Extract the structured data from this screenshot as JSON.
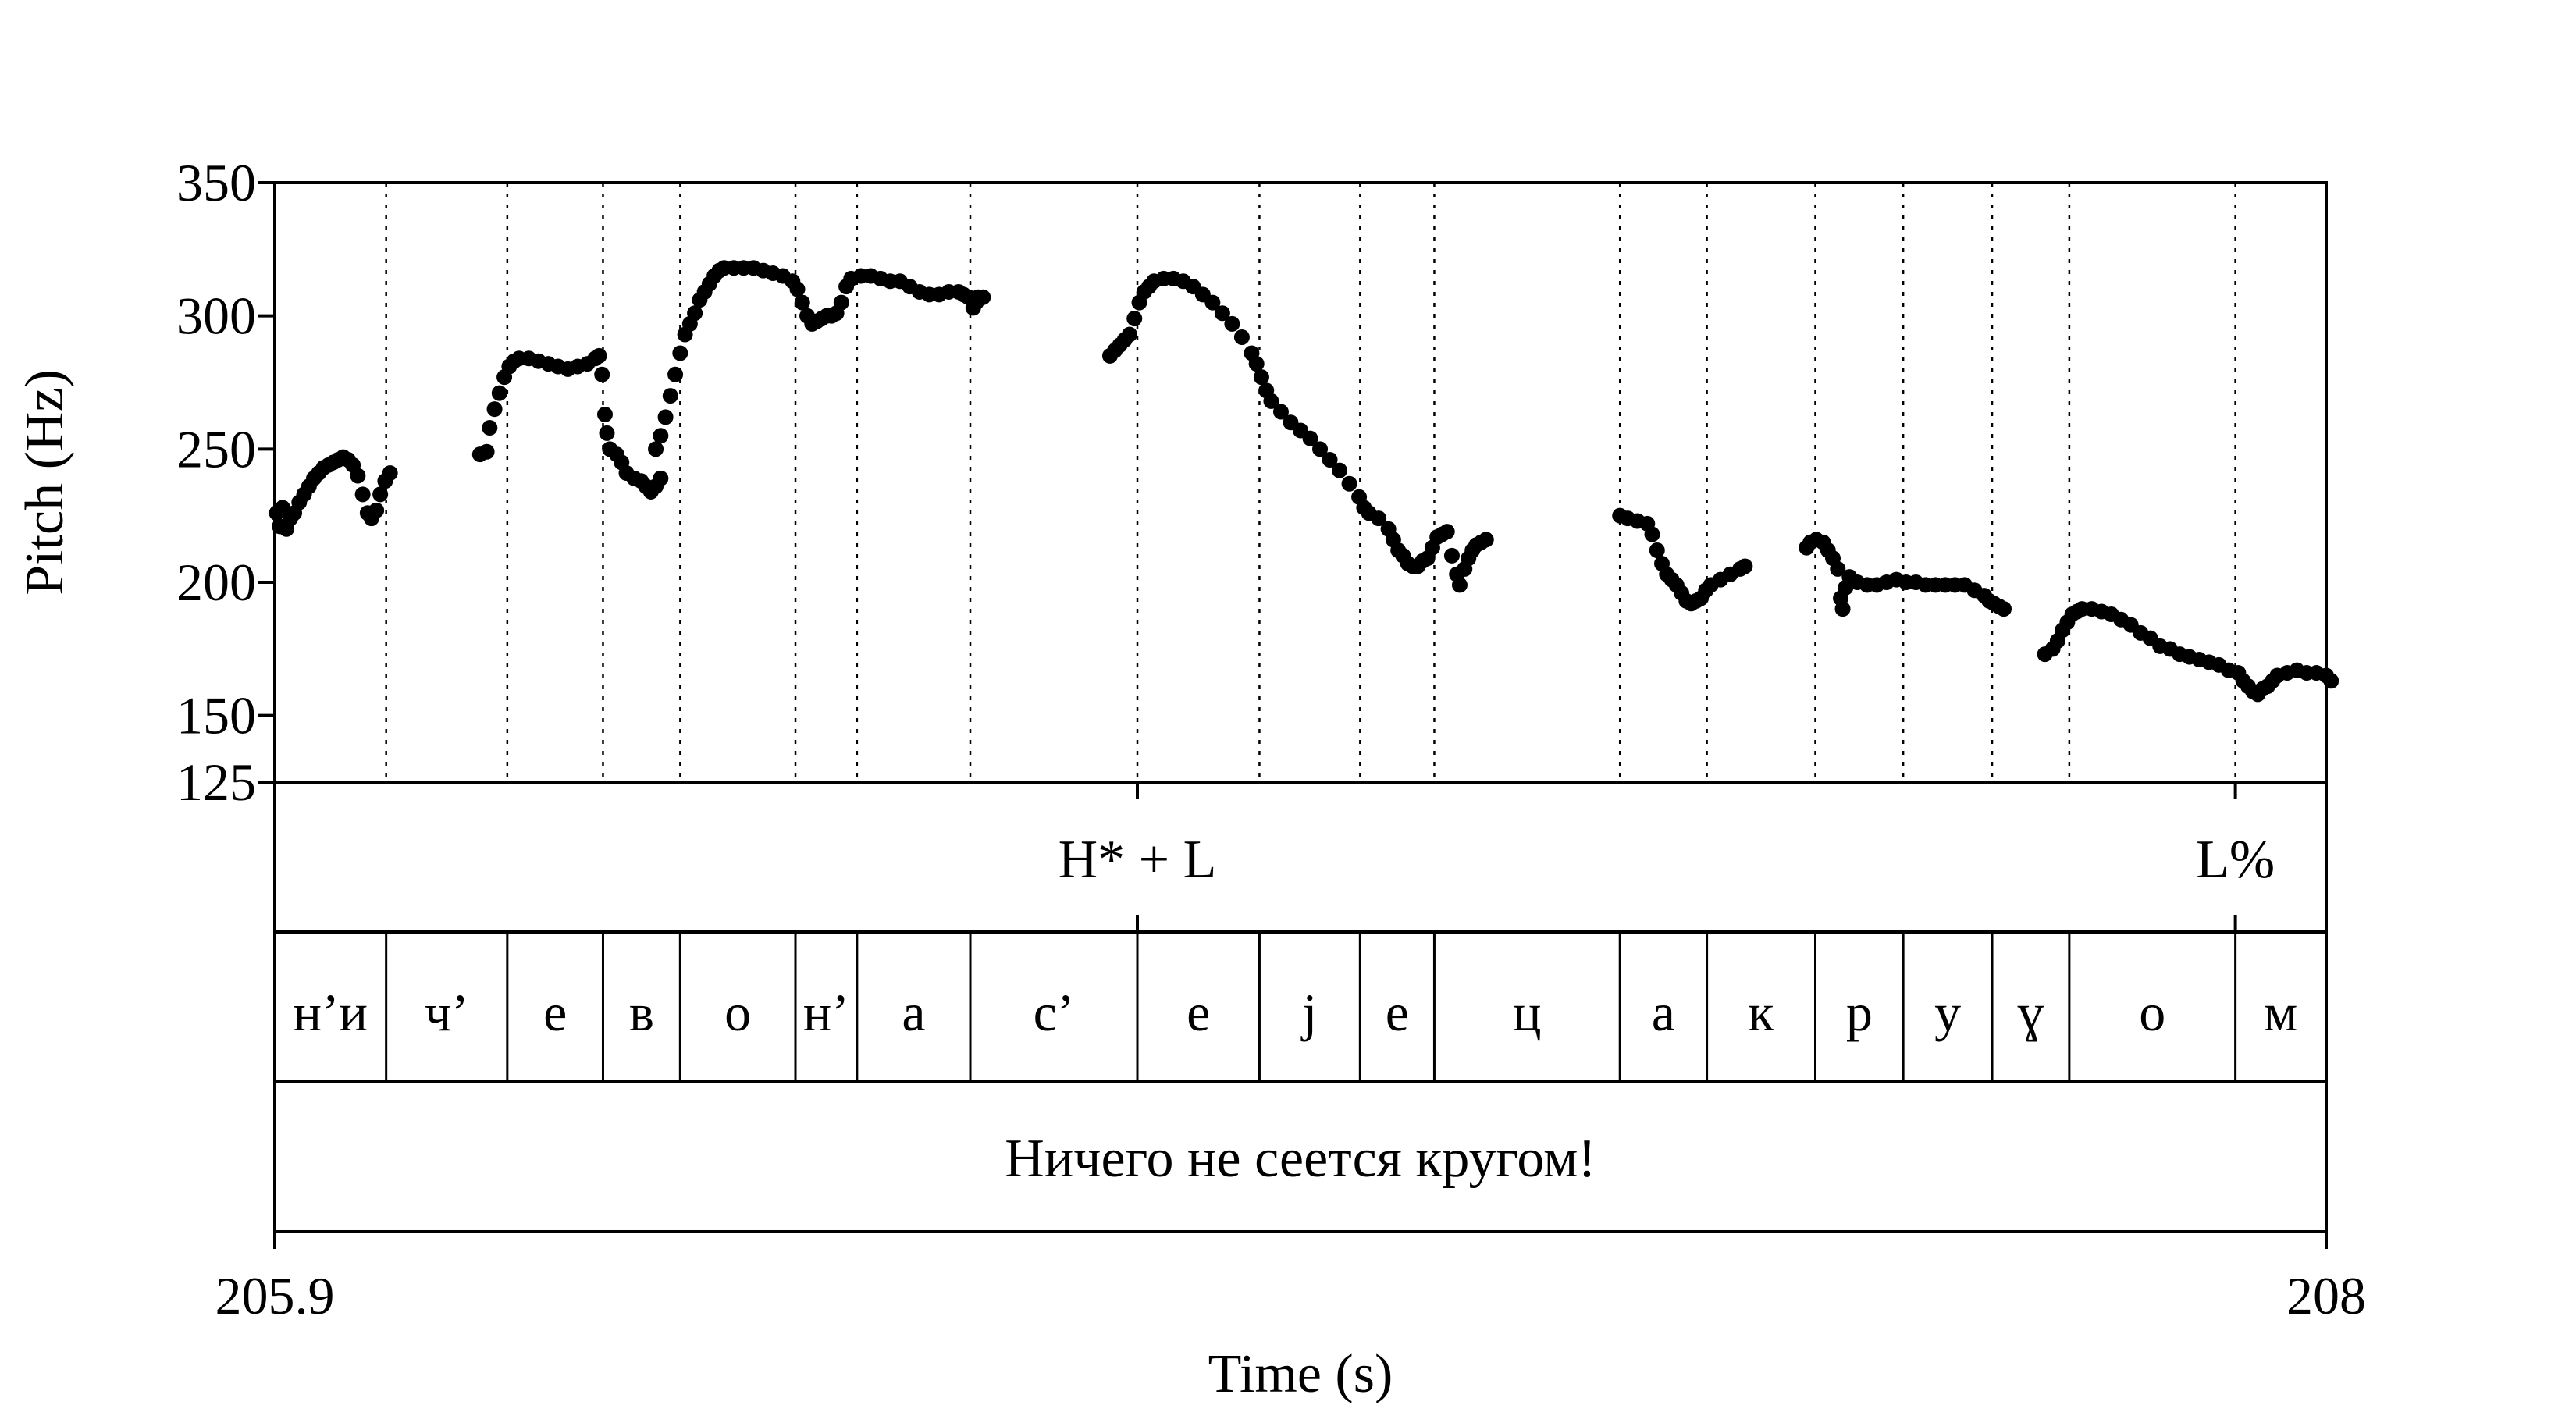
{
  "chart_data": {
    "type": "scatter",
    "xlabel": "Time (s)",
    "ylabel": "Pitch (Hz)",
    "xlim": [
      205.9,
      208
    ],
    "ylim": [
      125,
      350
    ],
    "x_tick_labels": [
      "205.9",
      "208"
    ],
    "y_ticks": [
      125,
      150,
      200,
      250,
      300,
      350
    ],
    "y_tick_labels": [
      "125",
      "150",
      "200",
      "250",
      "300",
      "350"
    ],
    "grid": "vertical dotted lines at segment boundaries",
    "segment_boundaries": [
      206.014,
      206.138,
      206.236,
      206.315,
      206.433,
      206.496,
      206.612,
      206.783,
      206.908,
      207.011,
      207.087,
      207.277,
      207.366,
      207.477,
      207.567,
      207.658,
      207.737,
      207.907
    ],
    "tones": [
      {
        "label": "H* + L",
        "time": 206.783
      },
      {
        "label": "L%",
        "time": 207.907
      }
    ],
    "segments": [
      "н’и",
      "ч’",
      "е",
      "в",
      "о",
      "н’",
      "а",
      "с’",
      "е",
      "ј",
      "е",
      "ц",
      "а",
      "к",
      "р",
      "у",
      "ɣ",
      "о",
      "м"
    ],
    "sentence": "Ничего не сеется кругом!",
    "series": [
      {
        "points": [
          [
            205.902,
            226
          ],
          [
            205.905,
            221
          ],
          [
            205.908,
            228
          ],
          [
            205.912,
            220
          ],
          [
            205.916,
            224
          ],
          [
            205.92,
            226
          ],
          [
            205.925,
            230
          ],
          [
            205.93,
            233
          ],
          [
            205.935,
            236
          ],
          [
            205.94,
            239
          ],
          [
            205.945,
            241
          ],
          [
            205.95,
            243
          ],
          [
            205.955,
            244
          ],
          [
            205.96,
            245
          ],
          [
            205.965,
            246
          ],
          [
            205.97,
            247
          ],
          [
            205.975,
            246
          ],
          [
            205.98,
            244
          ],
          [
            205.985,
            240
          ],
          [
            205.99,
            233
          ],
          [
            205.995,
            226
          ],
          [
            205.999,
            224
          ],
          [
            206.004,
            227
          ],
          [
            206.008,
            233
          ],
          [
            206.013,
            238
          ],
          [
            206.018,
            241
          ],
          [
            206.11,
            248
          ],
          [
            206.117,
            249
          ],
          [
            206.12,
            258
          ],
          [
            206.125,
            265
          ],
          [
            206.13,
            271
          ],
          [
            206.135,
            277
          ],
          [
            206.14,
            281
          ],
          [
            206.145,
            283
          ],
          [
            206.15,
            284
          ],
          [
            206.16,
            284
          ],
          [
            206.17,
            283
          ],
          [
            206.18,
            282
          ],
          [
            206.19,
            281
          ],
          [
            206.2,
            280
          ],
          [
            206.21,
            281
          ],
          [
            206.22,
            282
          ],
          [
            206.228,
            284
          ],
          [
            206.232,
            285
          ],
          [
            206.235,
            278
          ],
          [
            206.238,
            263
          ],
          [
            206.24,
            256
          ],
          [
            206.243,
            250
          ],
          [
            206.25,
            248
          ],
          [
            206.255,
            245
          ],
          [
            206.26,
            241
          ],
          [
            206.268,
            239
          ],
          [
            206.275,
            238
          ],
          [
            206.28,
            236
          ],
          [
            206.285,
            234
          ],
          [
            206.29,
            236
          ],
          [
            206.295,
            239
          ],
          [
            206.29,
            250
          ],
          [
            206.295,
            255
          ],
          [
            206.3,
            262
          ],
          [
            206.305,
            270
          ],
          [
            206.31,
            278
          ],
          [
            206.315,
            286
          ],
          [
            206.32,
            293
          ],
          [
            206.325,
            297
          ],
          [
            206.33,
            301
          ],
          [
            206.335,
            306
          ],
          [
            206.34,
            309
          ],
          [
            206.345,
            312
          ],
          [
            206.35,
            315
          ],
          [
            206.355,
            317
          ],
          [
            206.36,
            318
          ],
          [
            206.37,
            318
          ],
          [
            206.38,
            318
          ],
          [
            206.39,
            318
          ],
          [
            206.4,
            317
          ],
          [
            206.41,
            316
          ],
          [
            206.42,
            315
          ],
          [
            206.43,
            313
          ],
          [
            206.435,
            310
          ],
          [
            206.44,
            305
          ],
          [
            206.445,
            300
          ],
          [
            206.45,
            297
          ],
          [
            206.455,
            298
          ],
          [
            206.46,
            299
          ],
          [
            206.465,
            300
          ],
          [
            206.47,
            300
          ],
          [
            206.475,
            301
          ],
          [
            206.48,
            305
          ],
          [
            206.485,
            311
          ],
          [
            206.49,
            314
          ],
          [
            206.5,
            315
          ],
          [
            206.51,
            315
          ],
          [
            206.52,
            314
          ],
          [
            206.53,
            313
          ],
          [
            206.54,
            313
          ],
          [
            206.55,
            311
          ],
          [
            206.56,
            309
          ],
          [
            206.57,
            308
          ],
          [
            206.58,
            308
          ],
          [
            206.59,
            309
          ],
          [
            206.6,
            309
          ],
          [
            206.605,
            308
          ],
          [
            206.61,
            307
          ],
          [
            206.615,
            303
          ],
          [
            206.618,
            305
          ],
          [
            206.62,
            307
          ],
          [
            206.625,
            307
          ],
          [
            206.755,
            285
          ],
          [
            206.76,
            287
          ],
          [
            206.765,
            289
          ],
          [
            206.77,
            291
          ],
          [
            206.775,
            293
          ],
          [
            206.78,
            299
          ],
          [
            206.785,
            305
          ],
          [
            206.79,
            309
          ],
          [
            206.795,
            311
          ],
          [
            206.8,
            313
          ],
          [
            206.81,
            314
          ],
          [
            206.82,
            314
          ],
          [
            206.83,
            313
          ],
          [
            206.84,
            311
          ],
          [
            206.85,
            308
          ],
          [
            206.86,
            305
          ],
          [
            206.87,
            301
          ],
          [
            206.88,
            297
          ],
          [
            206.89,
            292
          ],
          [
            206.9,
            286
          ],
          [
            206.905,
            282
          ],
          [
            206.91,
            277
          ],
          [
            206.915,
            272
          ],
          [
            206.92,
            268
          ],
          [
            206.93,
            264
          ],
          [
            206.94,
            260
          ],
          [
            206.95,
            257
          ],
          [
            206.96,
            254
          ],
          [
            206.97,
            250
          ],
          [
            206.98,
            246
          ],
          [
            206.99,
            242
          ],
          [
            207.0,
            237
          ],
          [
            207.01,
            232
          ],
          [
            207.015,
            228
          ],
          [
            207.02,
            226
          ],
          [
            207.03,
            224
          ],
          [
            207.04,
            220
          ],
          [
            207.045,
            216
          ],
          [
            207.05,
            212
          ],
          [
            207.055,
            210
          ],
          [
            207.06,
            207
          ],
          [
            207.065,
            206
          ],
          [
            207.07,
            206
          ],
          [
            207.075,
            208
          ],
          [
            207.08,
            209
          ],
          [
            207.085,
            213
          ],
          [
            207.09,
            217
          ],
          [
            207.095,
            218
          ],
          [
            207.1,
            219
          ],
          [
            207.105,
            210
          ],
          [
            207.11,
            203
          ],
          [
            207.113,
            199
          ],
          [
            207.118,
            205
          ],
          [
            207.122,
            209
          ],
          [
            207.126,
            212
          ],
          [
            207.13,
            214
          ],
          [
            207.135,
            215
          ],
          [
            207.14,
            216
          ],
          [
            207.277,
            225
          ],
          [
            207.285,
            224
          ],
          [
            207.295,
            223
          ],
          [
            207.305,
            222
          ],
          [
            207.31,
            218
          ],
          [
            207.315,
            212
          ],
          [
            207.32,
            207
          ],
          [
            207.325,
            203
          ],
          [
            207.33,
            201
          ],
          [
            207.335,
            199
          ],
          [
            207.34,
            196
          ],
          [
            207.345,
            193
          ],
          [
            207.35,
            192
          ],
          [
            207.355,
            193
          ],
          [
            207.36,
            194
          ],
          [
            207.365,
            197
          ],
          [
            207.37,
            199
          ],
          [
            207.38,
            201
          ],
          [
            207.39,
            203
          ],
          [
            207.4,
            205
          ],
          [
            207.405,
            206
          ],
          [
            207.468,
            213
          ],
          [
            207.472,
            215
          ],
          [
            207.478,
            216
          ],
          [
            207.485,
            215
          ],
          [
            207.49,
            212
          ],
          [
            207.495,
            209
          ],
          [
            207.5,
            205
          ],
          [
            207.503,
            194
          ],
          [
            207.505,
            190
          ],
          [
            207.508,
            198
          ],
          [
            207.512,
            202
          ],
          [
            207.52,
            200
          ],
          [
            207.53,
            199
          ],
          [
            207.54,
            199
          ],
          [
            207.55,
            200
          ],
          [
            207.56,
            201
          ],
          [
            207.57,
            200
          ],
          [
            207.58,
            200
          ],
          [
            207.59,
            199
          ],
          [
            207.6,
            199
          ],
          [
            207.61,
            199
          ],
          [
            207.62,
            199
          ],
          [
            207.63,
            199
          ],
          [
            207.64,
            197
          ],
          [
            207.65,
            195
          ],
          [
            207.655,
            193
          ],
          [
            207.66,
            192
          ],
          [
            207.665,
            191
          ],
          [
            207.67,
            190
          ],
          [
            207.712,
            173
          ],
          [
            207.72,
            175
          ],
          [
            207.725,
            178
          ],
          [
            207.73,
            182
          ],
          [
            207.735,
            185
          ],
          [
            207.74,
            188
          ],
          [
            207.745,
            189
          ],
          [
            207.75,
            190
          ],
          [
            207.76,
            190
          ],
          [
            207.77,
            189
          ],
          [
            207.78,
            188
          ],
          [
            207.79,
            186
          ],
          [
            207.8,
            184
          ],
          [
            207.81,
            181
          ],
          [
            207.82,
            179
          ],
          [
            207.83,
            176
          ],
          [
            207.84,
            175
          ],
          [
            207.85,
            173
          ],
          [
            207.86,
            172
          ],
          [
            207.87,
            171
          ],
          [
            207.88,
            170
          ],
          [
            207.89,
            169
          ],
          [
            207.9,
            167
          ],
          [
            207.91,
            166
          ],
          [
            207.915,
            163
          ],
          [
            207.92,
            161
          ],
          [
            207.925,
            159
          ],
          [
            207.93,
            158
          ],
          [
            207.935,
            160
          ],
          [
            207.94,
            161
          ],
          [
            207.945,
            163
          ],
          [
            207.95,
            165
          ],
          [
            207.96,
            166
          ],
          [
            207.97,
            167
          ],
          [
            207.98,
            166
          ],
          [
            207.99,
            166
          ],
          [
            208.0,
            165
          ],
          [
            208.005,
            163
          ]
        ]
      }
    ]
  }
}
